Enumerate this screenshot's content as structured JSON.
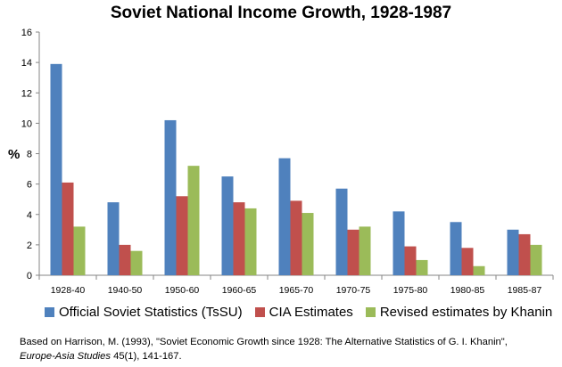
{
  "chart_data": {
    "type": "bar",
    "title": "Soviet National Income Growth, 1928-1987",
    "xlabel": "",
    "ylabel": "%",
    "ylim": [
      0,
      16
    ],
    "yticks": [
      "0",
      "2",
      "4",
      "6",
      "8",
      "10",
      "12",
      "14",
      "16"
    ],
    "grid": false,
    "legend_position": "bottom",
    "categories": [
      "1928-40",
      "1940-50",
      "1950-60",
      "1960-65",
      "1965-70",
      "1970-75",
      "1975-80",
      "1980-85",
      "1985-87"
    ],
    "series": [
      {
        "name": "Official Soviet Statistics (TsSU)",
        "color": "#4f81bd",
        "values": [
          13.9,
          4.8,
          10.2,
          6.5,
          7.7,
          5.7,
          4.2,
          3.5,
          3.0
        ]
      },
      {
        "name": "CIA Estimates",
        "color": "#c0504d",
        "values": [
          6.1,
          2.0,
          5.2,
          4.8,
          4.9,
          3.0,
          1.9,
          1.8,
          2.7
        ]
      },
      {
        "name": "Revised estimates by Khanin",
        "color": "#9bbb59",
        "values": [
          3.2,
          1.6,
          7.2,
          4.4,
          4.1,
          3.2,
          1.0,
          0.6,
          2.0
        ]
      }
    ]
  },
  "caption": {
    "line1": "Based on Harrison, M. (1993), \"Soviet Economic Growth since 1928: The Alternative Statistics of G. I. Khanin\",",
    "journal": "Europe-Asia Studies",
    "line2_rest": " 45(1),  141-167."
  }
}
